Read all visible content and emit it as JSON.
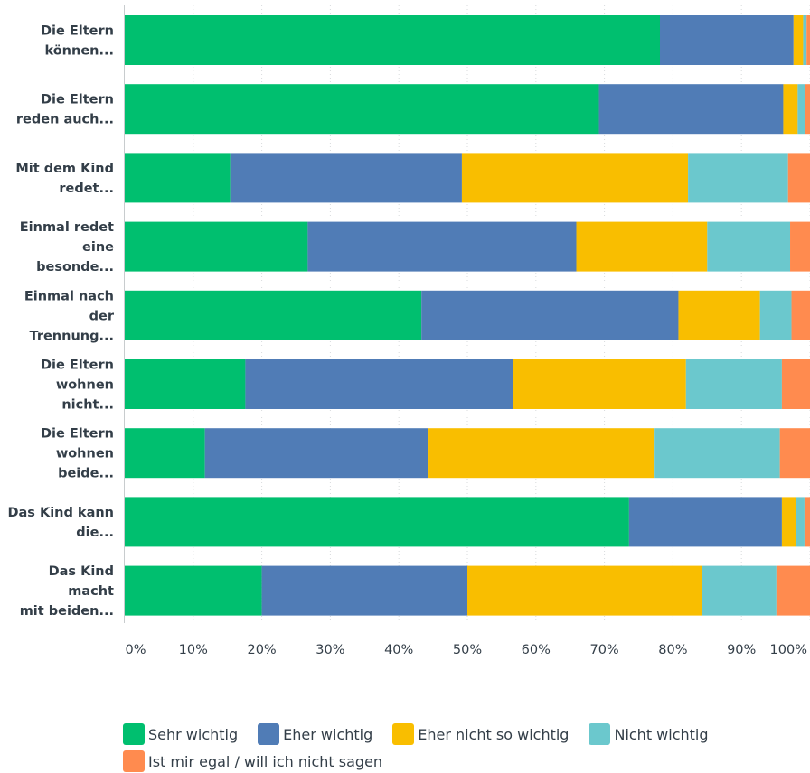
{
  "chart_data": {
    "type": "bar",
    "orientation": "horizontal",
    "stacked": true,
    "title": "",
    "xlabel": "",
    "ylabel": "",
    "xlim": [
      0,
      100
    ],
    "x_ticks": [
      "0%",
      "10%",
      "20%",
      "30%",
      "40%",
      "50%",
      "60%",
      "70%",
      "80%",
      "90%",
      "100%"
    ],
    "grid": true,
    "legend_position": "bottom",
    "categories": [
      [
        "Die Eltern",
        "können..."
      ],
      [
        "Die Eltern",
        "reden auch..."
      ],
      [
        "Mit dem Kind",
        "redet..."
      ],
      [
        "Einmal redet",
        "eine",
        "besonde..."
      ],
      [
        "Einmal nach",
        "der",
        "Trennung..."
      ],
      [
        "Die Eltern",
        "wohnen",
        "nicht..."
      ],
      [
        "Die Eltern",
        "wohnen",
        "beide..."
      ],
      [
        "Das Kind kann",
        "die..."
      ],
      [
        "Das Kind",
        "macht",
        "mit beiden..."
      ]
    ],
    "series": [
      {
        "name": "Sehr wichtig",
        "color": "#00bf6f",
        "values": [
          78.1,
          69.2,
          15.4,
          26.7,
          43.3,
          17.6,
          11.7,
          73.6,
          20.0
        ]
      },
      {
        "name": "Eher wichtig",
        "color": "#507cb6",
        "values": [
          19.5,
          26.9,
          33.8,
          39.2,
          37.5,
          39.0,
          32.5,
          22.3,
          30.0
        ]
      },
      {
        "name": "Eher nicht so wichtig",
        "color": "#f9be00",
        "values": [
          1.4,
          2.1,
          33.0,
          19.1,
          11.9,
          25.3,
          33.0,
          2.0,
          34.3
        ]
      },
      {
        "name": "Nicht wichtig",
        "color": "#6bc8cd",
        "values": [
          0.5,
          1.1,
          14.6,
          12.1,
          4.6,
          14.0,
          18.4,
          1.3,
          10.8
        ]
      },
      {
        "name": "Ist mir egal / will ich nicht sagen",
        "color": "#ff8b4f",
        "values": [
          0.5,
          0.7,
          3.2,
          2.9,
          2.7,
          4.1,
          4.4,
          0.8,
          4.9
        ]
      }
    ]
  }
}
